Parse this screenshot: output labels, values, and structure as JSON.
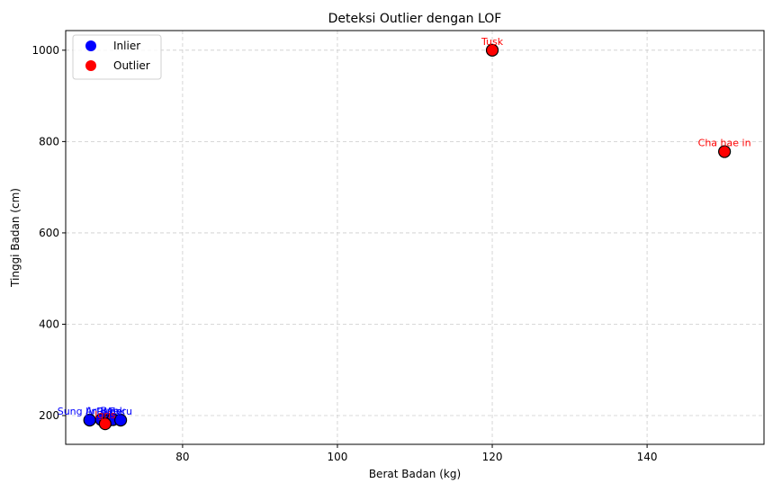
{
  "chart_data": {
    "type": "scatter",
    "title": "Deteksi Outlier dengan LOF",
    "xlabel": "Berat Badan (kg)",
    "ylabel": "Tinggi Badan (cm)",
    "xlim": [
      64.9,
      155.1
    ],
    "ylim": [
      137,
      1043
    ],
    "xticks": [
      80,
      100,
      120,
      140
    ],
    "yticks": [
      200,
      400,
      600,
      800,
      1000
    ],
    "grid": true,
    "legend_position": "top-left",
    "colors": {
      "inlier": "#0000ff",
      "outlier": "#ff0000",
      "edge": "#000000",
      "grid": "#cccccc"
    },
    "series": [
      {
        "name": "Inlier",
        "color": "#0000ff",
        "points": [
          {
            "x": 68,
            "y": 190,
            "label": "Sung Jin Woo"
          },
          {
            "x": 69.5,
            "y": 191,
            "label": "Arthur"
          },
          {
            "x": 70.5,
            "y": 190,
            "label": "Rudy"
          },
          {
            "x": 71,
            "y": 191,
            "label": "Baek"
          },
          {
            "x": 72,
            "y": 190,
            "label": "Beru"
          }
        ]
      },
      {
        "name": "Outlier",
        "color": "#ff0000",
        "points": [
          {
            "x": 120,
            "y": 1000,
            "label": "Tusk"
          },
          {
            "x": 150,
            "y": 778,
            "label": "Cha hae in"
          },
          {
            "x": 70,
            "y": 182,
            "label": "Igris"
          }
        ]
      }
    ]
  }
}
